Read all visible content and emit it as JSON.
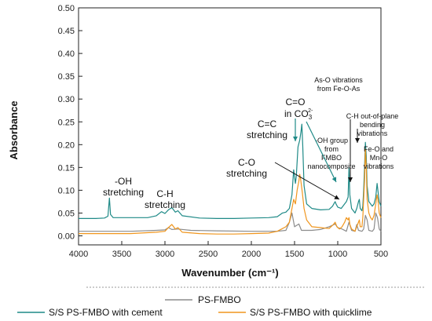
{
  "chart_data": {
    "type": "line",
    "xlabel": "Wavenumber (cm⁻¹)",
    "ylabel": "Absorbance",
    "xlim": [
      4000,
      500
    ],
    "ylim": [
      -0.02,
      0.5
    ],
    "x_ticks": [
      4000,
      3500,
      3000,
      2500,
      2000,
      1500,
      1000,
      500
    ],
    "y_ticks": [
      0.0,
      0.05,
      0.1,
      0.15,
      0.2,
      0.25,
      0.3,
      0.35,
      0.4,
      0.45,
      0.5
    ],
    "x_tick_labels": [
      "4000",
      "3500",
      "3000",
      "2500",
      "2000",
      "1500",
      "1000",
      "500"
    ],
    "y_tick_labels": [
      "0.00",
      "0.05",
      "0.10",
      "0.15",
      "0.20",
      "0.25",
      "0.30",
      "0.35",
      "0.40",
      "0.45",
      "0.50"
    ],
    "grid": false,
    "legend_position": "bottom",
    "series": [
      {
        "name": "PS-FMBO",
        "color": "#8c8c8c",
        "points": [
          [
            4000,
            0.01
          ],
          [
            3700,
            0.01
          ],
          [
            3400,
            0.01
          ],
          [
            3100,
            0.012
          ],
          [
            3000,
            0.013
          ],
          [
            2960,
            0.018
          ],
          [
            2920,
            0.014
          ],
          [
            2850,
            0.015
          ],
          [
            2700,
            0.012
          ],
          [
            2400,
            0.011
          ],
          [
            2000,
            0.01
          ],
          [
            1700,
            0.01
          ],
          [
            1600,
            0.012
          ],
          [
            1560,
            0.03
          ],
          [
            1530,
            0.05
          ],
          [
            1500,
            0.02
          ],
          [
            1450,
            0.026
          ],
          [
            1420,
            0.012
          ],
          [
            1300,
            0.012
          ],
          [
            1200,
            0.014
          ],
          [
            1100,
            0.02
          ],
          [
            1030,
            0.026
          ],
          [
            1000,
            0.018
          ],
          [
            950,
            0.015
          ],
          [
            900,
            0.01
          ],
          [
            870,
            0.03
          ],
          [
            840,
            0.012
          ],
          [
            800,
            0.01
          ],
          [
            780,
            0.025
          ],
          [
            760,
            0.012
          ],
          [
            720,
            0.01
          ],
          [
            700,
            0.015
          ],
          [
            680,
            0.045
          ],
          [
            660,
            0.035
          ],
          [
            640,
            0.012
          ],
          [
            600,
            0.01
          ],
          [
            580,
            0.015
          ],
          [
            560,
            0.05
          ],
          [
            540,
            0.04
          ],
          [
            520,
            0.015
          ],
          [
            500,
            0.01
          ]
        ]
      },
      {
        "name": "S/S PS-FMBO with cement",
        "color": "#1f8a87",
        "points": [
          [
            4000,
            0.038
          ],
          [
            3800,
            0.038
          ],
          [
            3700,
            0.039
          ],
          [
            3660,
            0.043
          ],
          [
            3643,
            0.083
          ],
          [
            3630,
            0.047
          ],
          [
            3600,
            0.04
          ],
          [
            3400,
            0.04
          ],
          [
            3200,
            0.04
          ],
          [
            3100,
            0.044
          ],
          [
            3040,
            0.053
          ],
          [
            3000,
            0.049
          ],
          [
            2960,
            0.057
          ],
          [
            2920,
            0.062
          ],
          [
            2880,
            0.052
          ],
          [
            2850,
            0.055
          ],
          [
            2800,
            0.044
          ],
          [
            2600,
            0.039
          ],
          [
            2400,
            0.038
          ],
          [
            2200,
            0.038
          ],
          [
            2000,
            0.039
          ],
          [
            1800,
            0.04
          ],
          [
            1700,
            0.042
          ],
          [
            1640,
            0.05
          ],
          [
            1600,
            0.052
          ],
          [
            1560,
            0.06
          ],
          [
            1530,
            0.09
          ],
          [
            1510,
            0.145
          ],
          [
            1490,
            0.115
          ],
          [
            1480,
            0.13
          ],
          [
            1460,
            0.195
          ],
          [
            1440,
            0.21
          ],
          [
            1425,
            0.23
          ],
          [
            1415,
            0.245
          ],
          [
            1405,
            0.2
          ],
          [
            1390,
            0.11
          ],
          [
            1360,
            0.07
          ],
          [
            1300,
            0.06
          ],
          [
            1200,
            0.057
          ],
          [
            1100,
            0.058
          ],
          [
            1060,
            0.065
          ],
          [
            1040,
            0.072
          ],
          [
            1030,
            0.075
          ],
          [
            1020,
            0.07
          ],
          [
            1000,
            0.063
          ],
          [
            960,
            0.06
          ],
          [
            920,
            0.07
          ],
          [
            900,
            0.075
          ],
          [
            880,
            0.085
          ],
          [
            870,
            0.15
          ],
          [
            860,
            0.09
          ],
          [
            840,
            0.06
          ],
          [
            800,
            0.05
          ],
          [
            780,
            0.06
          ],
          [
            760,
            0.075
          ],
          [
            750,
            0.08
          ],
          [
            740,
            0.06
          ],
          [
            720,
            0.055
          ],
          [
            710,
            0.065
          ],
          [
            700,
            0.1
          ],
          [
            690,
            0.15
          ],
          [
            680,
            0.205
          ],
          [
            670,
            0.175
          ],
          [
            660,
            0.11
          ],
          [
            640,
            0.075
          ],
          [
            620,
            0.07
          ],
          [
            600,
            0.065
          ],
          [
            580,
            0.07
          ],
          [
            560,
            0.085
          ],
          [
            545,
            0.115
          ],
          [
            535,
            0.1
          ],
          [
            520,
            0.075
          ],
          [
            500,
            0.065
          ]
        ]
      },
      {
        "name": "S/S PS-FMBO with quicklime",
        "color": "#f0961e",
        "points": [
          [
            4000,
            0.005
          ],
          [
            3700,
            0.005
          ],
          [
            3400,
            0.005
          ],
          [
            3100,
            0.008
          ],
          [
            3000,
            0.01
          ],
          [
            2960,
            0.018
          ],
          [
            2920,
            0.025
          ],
          [
            2880,
            0.015
          ],
          [
            2850,
            0.018
          ],
          [
            2800,
            0.008
          ],
          [
            2600,
            0.005
          ],
          [
            2400,
            0.004
          ],
          [
            2200,
            0.004
          ],
          [
            2000,
            0.005
          ],
          [
            1800,
            0.006
          ],
          [
            1700,
            0.01
          ],
          [
            1650,
            0.015
          ],
          [
            1600,
            0.02
          ],
          [
            1560,
            0.03
          ],
          [
            1530,
            0.06
          ],
          [
            1510,
            0.08
          ],
          [
            1490,
            0.07
          ],
          [
            1470,
            0.1
          ],
          [
            1450,
            0.12
          ],
          [
            1440,
            0.135
          ],
          [
            1430,
            0.125
          ],
          [
            1410,
            0.095
          ],
          [
            1390,
            0.06
          ],
          [
            1360,
            0.035
          ],
          [
            1300,
            0.02
          ],
          [
            1200,
            0.018
          ],
          [
            1100,
            0.016
          ],
          [
            1050,
            0.025
          ],
          [
            1030,
            0.03
          ],
          [
            1010,
            0.02
          ],
          [
            980,
            0.015
          ],
          [
            950,
            0.02
          ],
          [
            920,
            0.03
          ],
          [
            900,
            0.04
          ],
          [
            880,
            0.035
          ],
          [
            870,
            0.04
          ],
          [
            860,
            0.025
          ],
          [
            840,
            0.015
          ],
          [
            800,
            0.01
          ],
          [
            780,
            0.02
          ],
          [
            760,
            0.03
          ],
          [
            750,
            0.035
          ],
          [
            740,
            0.02
          ],
          [
            720,
            0.02
          ],
          [
            710,
            0.04
          ],
          [
            700,
            0.08
          ],
          [
            690,
            0.12
          ],
          [
            680,
            0.19
          ],
          [
            670,
            0.15
          ],
          [
            660,
            0.08
          ],
          [
            640,
            0.05
          ],
          [
            620,
            0.04
          ],
          [
            600,
            0.035
          ],
          [
            580,
            0.045
          ],
          [
            560,
            0.07
          ],
          [
            545,
            0.09
          ],
          [
            535,
            0.08
          ],
          [
            520,
            0.05
          ],
          [
            500,
            0.04
          ]
        ]
      }
    ],
    "annotations": {
      "oh_stretch": {
        "line1": "-OH",
        "line2": "stretching",
        "color": "#1f8a87"
      },
      "ch_stretch": {
        "line1": "C-H",
        "line2": "stretching"
      },
      "cc_stretch": {
        "line1": "C=C",
        "line2": "stretching"
      },
      "co_stretch": {
        "line1": "C-O",
        "line2": "stretching"
      },
      "co3": {
        "line1": "C=O",
        "line2": "in CO",
        "sub": "3",
        "sup": "2-",
        "color": "#1f8a87"
      },
      "oh_group": {
        "line1": "-OH group",
        "line2": "from",
        "line3": "FMBO",
        "line4": "nanocomposite"
      },
      "aso": {
        "line1": "As-O vibrations",
        "line2": "from Fe-O-As",
        "color": "#1f8a87"
      },
      "ch_oop": {
        "line1": "C-H out-of-plane",
        "line2": "bending",
        "line3": "vibrations"
      },
      "feo": {
        "line1": "Fe-O and",
        "line2": "Mn-O",
        "line3": "vibrations"
      }
    }
  },
  "legend": {
    "items": [
      {
        "label": "PS-FMBO",
        "color": "#8c8c8c"
      },
      {
        "label": "S/S PS-FMBO with cement",
        "color": "#1f8a87"
      },
      {
        "label": "S/S PS-FMBO with quicklime",
        "color": "#f0961e"
      }
    ]
  }
}
